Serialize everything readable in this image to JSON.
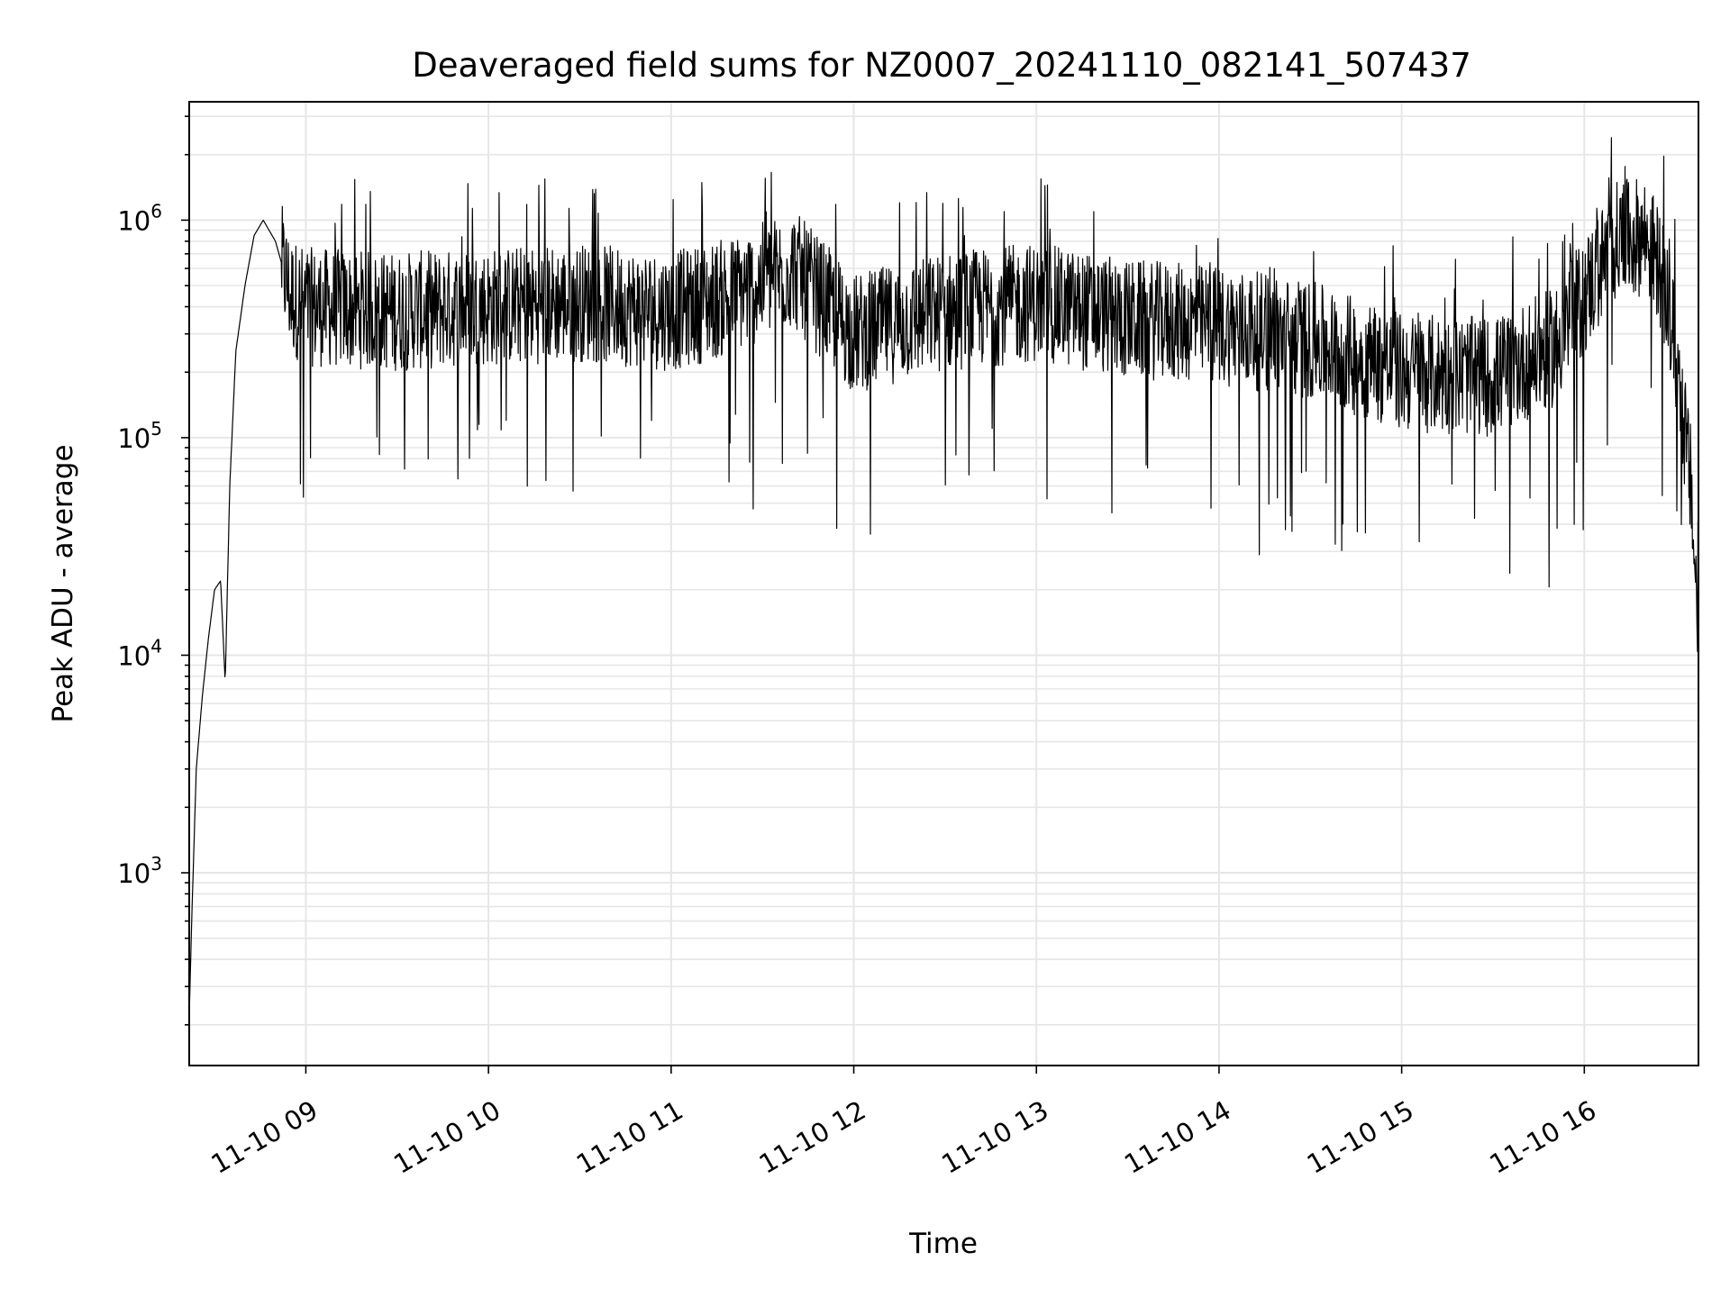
{
  "chart_data": {
    "type": "line",
    "title": "Deaveraged field sums for NZ0007_20241110_082141_507437",
    "xlabel": "Time",
    "ylabel": "Peak ADU - average",
    "yscale": "log",
    "ylim": [
      130,
      3500000
    ],
    "xlim": [
      "2024-11-10 08:21:41",
      "2024-11-10 16:37:30"
    ],
    "grid": true,
    "line_color": "#000000",
    "x_ticks": [
      {
        "value": "2024-11-10 09:00",
        "label": "11-10 09"
      },
      {
        "value": "2024-11-10 10:00",
        "label": "11-10 10"
      },
      {
        "value": "2024-11-10 11:00",
        "label": "11-10 11"
      },
      {
        "value": "2024-11-10 12:00",
        "label": "11-10 12"
      },
      {
        "value": "2024-11-10 13:00",
        "label": "11-10 13"
      },
      {
        "value": "2024-11-10 14:00",
        "label": "11-10 14"
      },
      {
        "value": "2024-11-10 15:00",
        "label": "11-10 15"
      },
      {
        "value": "2024-11-10 16:00",
        "label": "11-10 16"
      }
    ],
    "y_ticks": [
      {
        "value": 1000,
        "base": "10",
        "exp": "3"
      },
      {
        "value": 10000,
        "base": "10",
        "exp": "4"
      },
      {
        "value": 100000,
        "base": "10",
        "exp": "5"
      },
      {
        "value": 1000000,
        "base": "10",
        "exp": "6"
      }
    ],
    "series": [
      {
        "points": [
          [
            "08:21:41",
            220
          ],
          [
            "08:22:30",
            600
          ],
          [
            "08:24:00",
            3000
          ],
          [
            "08:26:00",
            6500
          ],
          [
            "08:28:00",
            12000
          ],
          [
            "08:30:00",
            20000
          ],
          [
            "08:32:00",
            22000
          ],
          [
            "08:33:30",
            7500
          ],
          [
            "08:35:00",
            60000
          ],
          [
            "08:37:00",
            250000
          ],
          [
            "08:40:00",
            500000
          ],
          [
            "08:43:00",
            850000
          ],
          [
            "08:46:00",
            1000000
          ],
          [
            "08:50:00",
            800000
          ],
          [
            "08:55:00",
            450000
          ],
          [
            "09:00:00",
            400000
          ],
          [
            "09:30:00",
            380000
          ],
          [
            "10:00:00",
            400000
          ],
          [
            "10:30:00",
            420000
          ],
          [
            "11:00:00",
            380000
          ],
          [
            "11:20:00",
            450000
          ],
          [
            "11:40:00",
            600000
          ],
          [
            "12:00:00",
            300000
          ],
          [
            "12:30:00",
            380000
          ],
          [
            "13:00:00",
            420000
          ],
          [
            "13:30:00",
            350000
          ],
          [
            "14:00:00",
            330000
          ],
          [
            "14:30:00",
            280000
          ],
          [
            "15:00:00",
            200000
          ],
          [
            "15:30:00",
            190000
          ],
          [
            "15:50:00",
            260000
          ],
          [
            "16:00:00",
            450000
          ],
          [
            "16:10:00",
            800000
          ],
          [
            "16:20:00",
            850000
          ],
          [
            "16:25:00",
            600000
          ],
          [
            "16:30:00",
            250000
          ],
          [
            "16:35:00",
            60000
          ],
          [
            "16:37:30",
            12000
          ]
        ]
      }
    ]
  }
}
